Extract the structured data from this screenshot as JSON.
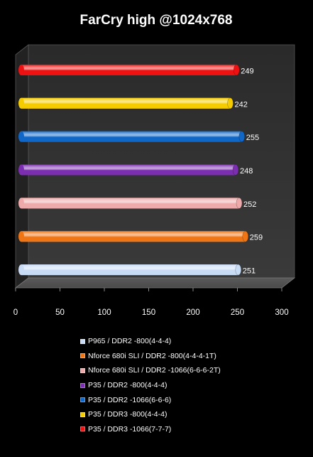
{
  "chart_data": {
    "type": "bar",
    "orientation": "horizontal",
    "title": "FarCry high @1024x768",
    "xlim": [
      0,
      300
    ],
    "xticks": [
      0,
      50,
      100,
      150,
      200,
      250,
      300
    ],
    "grid": false,
    "legend_position": "bottom",
    "series": [
      {
        "name": "P965 / DDR2 -800(4-4-4)",
        "value": 251,
        "color": "#c9dcf5"
      },
      {
        "name": "Nforce 680i SLI / DDR2 -800(4-4-4-1T)",
        "value": 259,
        "color": "#f07514"
      },
      {
        "name": "Nforce 680i SLI / DDR2 -1066(6-6-6-2T)",
        "value": 252,
        "color": "#eeaaaa"
      },
      {
        "name": "P35 / DDR2 -800(4-4-4)",
        "value": 248,
        "color": "#7b2eb0"
      },
      {
        "name": "P35 / DDR2 -1066(6-6-6)",
        "value": 255,
        "color": "#1067c8"
      },
      {
        "name": "P35 / DDR3 -800(4-4-4)",
        "value": 242,
        "color": "#f5cc00"
      },
      {
        "name": "P35 / DDR3 -1066(7-7-7)",
        "value": 249,
        "color": "#ee1111"
      }
    ]
  }
}
